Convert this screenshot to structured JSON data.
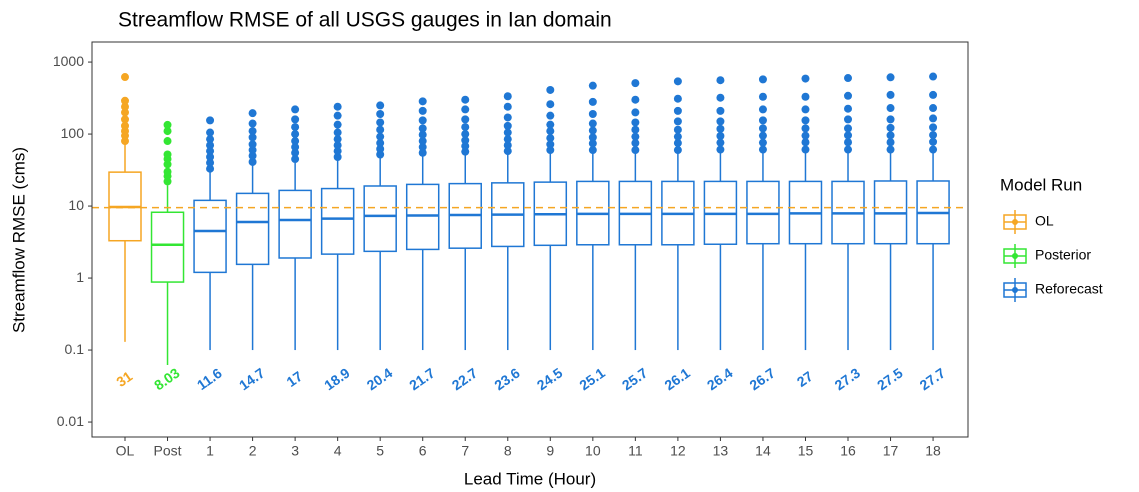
{
  "chart_data": {
    "type": "boxplot",
    "title": "Streamflow RMSE of all USGS gauges in Ian domain",
    "x_label": "Lead Time (Hour)",
    "y_label": "Streamflow RMSE (cms)",
    "y_scale": "log",
    "grid": false,
    "legend_title": "Model Run",
    "legend_position": "right",
    "categories": [
      "OL",
      "Post",
      "1",
      "2",
      "3",
      "4",
      "5",
      "6",
      "7",
      "8",
      "9",
      "10",
      "11",
      "12",
      "13",
      "14",
      "15",
      "16",
      "17",
      "18"
    ],
    "ylim": [
      0.0062,
      1900
    ],
    "yticks": [
      0.01,
      0.1,
      1,
      10,
      100,
      1000
    ],
    "hline": {
      "value": 9.5,
      "color": "#f5a623"
    },
    "series": [
      {
        "name": "OL",
        "color": "#f5a623",
        "values": [
          {
            "low": 0.13,
            "q1": 3.3,
            "median": 9.7,
            "q3": 29.6,
            "high": 72,
            "outliers": [
              80,
              95,
              110,
              130,
              160,
              200,
              240,
              290,
              620
            ],
            "label": 31
          },
          null,
          null,
          null,
          null,
          null,
          null,
          null,
          null,
          null,
          null,
          null,
          null,
          null,
          null,
          null,
          null,
          null,
          null,
          null
        ]
      },
      {
        "name": "Posterior",
        "color": "#33e633",
        "values": [
          null,
          {
            "low": 0.062,
            "q1": 0.88,
            "median": 2.9,
            "q3": 8.2,
            "high": 19.5,
            "outliers": [
              22,
              26,
              30,
              38,
              45,
              52,
              80,
              110,
              134
            ],
            "label": 8.03
          },
          null,
          null,
          null,
          null,
          null,
          null,
          null,
          null,
          null,
          null,
          null,
          null,
          null,
          null,
          null,
          null,
          null,
          null
        ]
      },
      {
        "name": "Reforecast",
        "color": "#1f77d4",
        "values": [
          null,
          null,
          {
            "low": 0.1,
            "q1": 1.2,
            "median": 4.5,
            "q3": 12,
            "high": 30,
            "outliers": [
              33,
              40,
              48,
              58,
              70,
              85,
              105,
              155
            ],
            "label": 11.6
          },
          {
            "low": 0.1,
            "q1": 1.55,
            "median": 6,
            "q3": 15,
            "high": 37,
            "outliers": [
              41,
              50,
              60,
              72,
              90,
              110,
              140,
              195
            ],
            "label": 14.7
          },
          {
            "low": 0.1,
            "q1": 1.9,
            "median": 6.4,
            "q3": 16.5,
            "high": 40,
            "outliers": [
              45,
              55,
              66,
              80,
              100,
              125,
              160,
              220
            ],
            "label": 17
          },
          {
            "low": 0.1,
            "q1": 2.15,
            "median": 6.7,
            "q3": 17.5,
            "high": 43,
            "outliers": [
              48,
              58,
              70,
              85,
              105,
              135,
              180,
              240
            ],
            "label": 18.9
          },
          {
            "low": 0.1,
            "q1": 2.35,
            "median": 7.3,
            "q3": 19,
            "high": 47,
            "outliers": [
              52,
              62,
              75,
              92,
              115,
              145,
              190,
              250
            ],
            "label": 20.4
          },
          {
            "low": 0.1,
            "q1": 2.5,
            "median": 7.4,
            "q3": 20,
            "high": 50,
            "outliers": [
              55,
              66,
              80,
              98,
              120,
              155,
              210,
              285
            ],
            "label": 21.7
          },
          {
            "low": 0.1,
            "q1": 2.6,
            "median": 7.5,
            "q3": 20.5,
            "high": 52,
            "outliers": [
              57,
              68,
              82,
              100,
              125,
              160,
              220,
              300
            ],
            "label": 22.7
          },
          {
            "low": 0.1,
            "q1": 2.75,
            "median": 7.6,
            "q3": 21,
            "high": 53,
            "outliers": [
              58,
              70,
              85,
              105,
              130,
              170,
              240,
              335
            ],
            "label": 23.6
          },
          {
            "low": 0.1,
            "q1": 2.85,
            "median": 7.7,
            "q3": 21.5,
            "high": 54,
            "outliers": [
              60,
              72,
              88,
              110,
              135,
              180,
              260,
              410
            ],
            "label": 24.5
          },
          {
            "low": 0.1,
            "q1": 2.9,
            "median": 7.8,
            "q3": 22,
            "high": 55,
            "outliers": [
              60,
              74,
              90,
              112,
              140,
              190,
              280,
              470
            ],
            "label": 25.1
          },
          {
            "low": 0.1,
            "q1": 2.9,
            "median": 7.8,
            "q3": 22,
            "high": 55,
            "outliers": [
              60,
              75,
              92,
              115,
              145,
              200,
              300,
              510
            ],
            "label": 25.7
          },
          {
            "low": 0.1,
            "q1": 2.9,
            "median": 7.8,
            "q3": 22,
            "high": 55,
            "outliers": [
              60,
              75,
              92,
              115,
              150,
              210,
              310,
              540
            ],
            "label": 26.1
          },
          {
            "low": 0.1,
            "q1": 2.95,
            "median": 7.8,
            "q3": 22,
            "high": 55,
            "outliers": [
              61,
              76,
              94,
              118,
              150,
              210,
              320,
              560
            ],
            "label": 26.4
          },
          {
            "low": 0.1,
            "q1": 3.0,
            "median": 7.8,
            "q3": 22,
            "high": 55,
            "outliers": [
              61,
              76,
              95,
              120,
              155,
              220,
              330,
              575
            ],
            "label": 26.7
          },
          {
            "low": 0.1,
            "q1": 3.0,
            "median": 7.9,
            "q3": 22,
            "high": 55,
            "outliers": [
              61,
              77,
              95,
              120,
              155,
              220,
              330,
              590
            ],
            "label": 27
          },
          {
            "low": 0.1,
            "q1": 3.0,
            "median": 7.9,
            "q3": 22,
            "high": 55,
            "outliers": [
              61,
              77,
              96,
              120,
              160,
              225,
              340,
              600
            ],
            "label": 27.3
          },
          {
            "low": 0.1,
            "q1": 3.0,
            "median": 7.9,
            "q3": 22.3,
            "high": 55,
            "outliers": [
              61,
              77,
              96,
              122,
              160,
              230,
              350,
              615
            ],
            "label": 27.5
          },
          {
            "low": 0.1,
            "q1": 3.0,
            "median": 8.0,
            "q3": 22.3,
            "high": 55,
            "outliers": [
              61,
              78,
              97,
              124,
              165,
              230,
              350,
              630
            ],
            "label": 27.7
          }
        ]
      }
    ]
  }
}
